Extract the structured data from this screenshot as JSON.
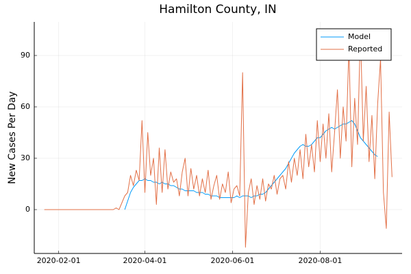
{
  "chart_data": {
    "type": "line",
    "title": "Hamilton County, IN",
    "y_label": "New Cases Per Day",
    "x": [
      "2020-01-22",
      "2020-01-24",
      "2020-01-26",
      "2020-01-28",
      "2020-01-30",
      "2020-02-01",
      "2020-02-03",
      "2020-02-05",
      "2020-02-07",
      "2020-02-09",
      "2020-02-11",
      "2020-02-13",
      "2020-02-15",
      "2020-02-17",
      "2020-02-19",
      "2020-02-21",
      "2020-02-23",
      "2020-02-25",
      "2020-02-27",
      "2020-02-29",
      "2020-03-02",
      "2020-03-04",
      "2020-03-06",
      "2020-03-08",
      "2020-03-10",
      "2020-03-12",
      "2020-03-14",
      "2020-03-16",
      "2020-03-18",
      "2020-03-20",
      "2020-03-22",
      "2020-03-24",
      "2020-03-26",
      "2020-03-28",
      "2020-03-30",
      "2020-04-01",
      "2020-04-03",
      "2020-04-05",
      "2020-04-07",
      "2020-04-09",
      "2020-04-11",
      "2020-04-13",
      "2020-04-15",
      "2020-04-17",
      "2020-04-19",
      "2020-04-21",
      "2020-04-23",
      "2020-04-25",
      "2020-04-27",
      "2020-04-29",
      "2020-05-01",
      "2020-05-03",
      "2020-05-05",
      "2020-05-07",
      "2020-05-09",
      "2020-05-11",
      "2020-05-13",
      "2020-05-15",
      "2020-05-17",
      "2020-05-19",
      "2020-05-21",
      "2020-05-23",
      "2020-05-25",
      "2020-05-27",
      "2020-05-29",
      "2020-05-31",
      "2020-06-02",
      "2020-06-04",
      "2020-06-06",
      "2020-06-08",
      "2020-06-10",
      "2020-06-12",
      "2020-06-14",
      "2020-06-16",
      "2020-06-18",
      "2020-06-20",
      "2020-06-22",
      "2020-06-24",
      "2020-06-26",
      "2020-06-28",
      "2020-06-30",
      "2020-07-02",
      "2020-07-04",
      "2020-07-06",
      "2020-07-08",
      "2020-07-10",
      "2020-07-12",
      "2020-07-14",
      "2020-07-16",
      "2020-07-18",
      "2020-07-20",
      "2020-07-22",
      "2020-07-24",
      "2020-07-26",
      "2020-07-28",
      "2020-07-30",
      "2020-08-01",
      "2020-08-03",
      "2020-08-05",
      "2020-08-07",
      "2020-08-09",
      "2020-08-11",
      "2020-08-13",
      "2020-08-15",
      "2020-08-17",
      "2020-08-19",
      "2020-08-21",
      "2020-08-23",
      "2020-08-25",
      "2020-08-27",
      "2020-08-29",
      "2020-08-31",
      "2020-09-02",
      "2020-09-04",
      "2020-09-06",
      "2020-09-08",
      "2020-09-10",
      "2020-09-12",
      "2020-09-14",
      "2020-09-16",
      "2020-09-18",
      "2020-09-20"
    ],
    "series": [
      {
        "name": "Model",
        "color": "#009af9",
        "values": [
          null,
          null,
          null,
          null,
          null,
          null,
          null,
          null,
          null,
          null,
          null,
          null,
          null,
          null,
          null,
          null,
          null,
          null,
          null,
          null,
          null,
          null,
          null,
          null,
          null,
          null,
          null,
          null,
          0,
          5,
          10,
          13,
          15,
          17,
          17,
          18,
          17,
          17,
          16,
          16,
          15,
          16,
          15,
          15,
          14,
          14,
          13,
          12,
          12,
          11,
          11,
          11,
          11,
          10,
          10,
          10,
          9,
          9,
          8,
          8,
          8,
          7,
          7,
          7,
          7,
          7,
          7,
          8,
          7,
          8,
          8,
          8,
          7,
          8,
          8,
          9,
          9,
          10,
          12,
          14,
          16,
          18,
          20,
          22,
          24,
          27,
          30,
          33,
          35,
          37,
          38,
          37,
          37,
          38,
          40,
          42,
          42,
          44,
          46,
          47,
          48,
          47,
          48,
          49,
          50,
          50,
          51,
          52,
          50,
          46,
          42,
          40,
          38,
          36,
          34,
          32,
          31,
          null,
          null,
          null,
          null,
          null
        ]
      },
      {
        "name": "Reported",
        "color": "#e26f46",
        "values": [
          0,
          0,
          0,
          0,
          0,
          0,
          0,
          0,
          0,
          0,
          0,
          0,
          0,
          0,
          0,
          0,
          0,
          0,
          0,
          0,
          0,
          0,
          0,
          0,
          0,
          1,
          0,
          4,
          8,
          10,
          20,
          14,
          23,
          17,
          52,
          10,
          45,
          20,
          30,
          3,
          36,
          10,
          35,
          12,
          22,
          16,
          18,
          8,
          22,
          30,
          8,
          24,
          12,
          20,
          8,
          18,
          10,
          23,
          6,
          14,
          20,
          6,
          15,
          10,
          22,
          4,
          12,
          14,
          8,
          80,
          -22,
          10,
          18,
          3,
          14,
          6,
          18,
          5,
          15,
          12,
          20,
          9,
          18,
          20,
          12,
          28,
          16,
          30,
          20,
          35,
          18,
          44,
          25,
          38,
          22,
          52,
          28,
          50,
          30,
          56,
          22,
          45,
          70,
          30,
          60,
          40,
          95,
          25,
          65,
          38,
          105,
          40,
          72,
          28,
          55,
          18,
          62,
          88,
          10,
          -11,
          57,
          19
        ]
      }
    ],
    "xlim": [
      "2020-01-15",
      "2020-09-27"
    ],
    "xticks": [
      "2020-02-01",
      "2020-04-01",
      "2020-06-01",
      "2020-08-01"
    ],
    "ylim": [
      -25.6,
      109.6
    ],
    "yticks": [
      0,
      30,
      60,
      90
    ],
    "grid": true,
    "legend": "top-right"
  }
}
